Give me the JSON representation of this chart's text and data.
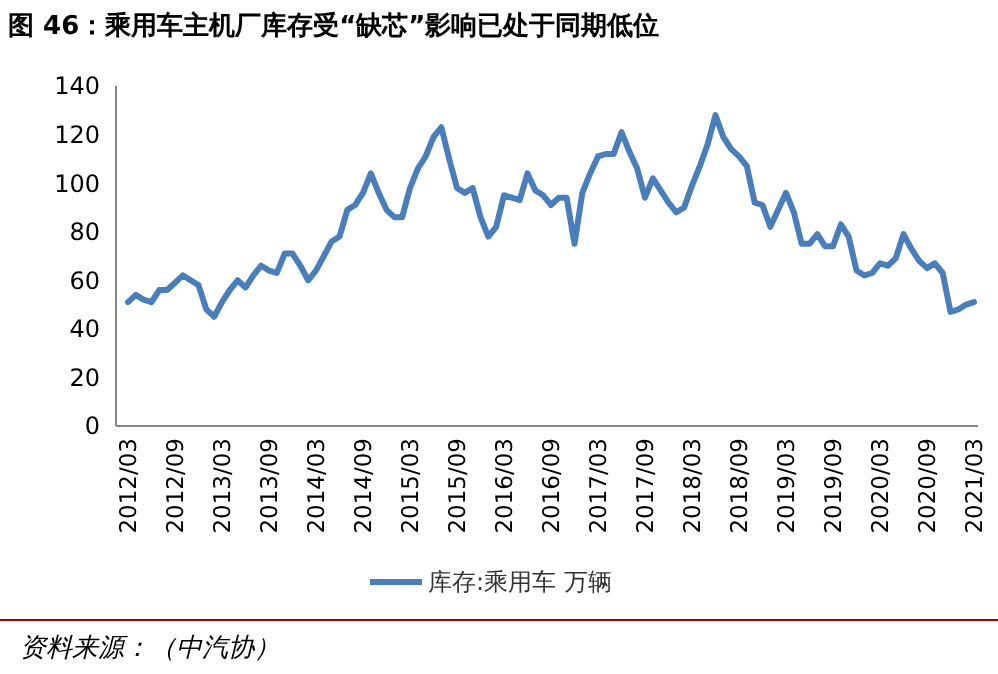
{
  "chart_data": {
    "type": "line",
    "title": "图 46：乘用车主机厂库存受“缺芯”影响已处于同期低位",
    "annotations": [
      "资料来源：（中汽协）"
    ],
    "categories": [
      "2012/03",
      null,
      null,
      null,
      null,
      null,
      "2012/09",
      null,
      null,
      null,
      null,
      null,
      "2013/03",
      null,
      null,
      null,
      null,
      null,
      "2013/09",
      null,
      null,
      null,
      null,
      null,
      "2014/03",
      null,
      null,
      null,
      null,
      null,
      "2014/09",
      null,
      null,
      null,
      null,
      null,
      "2015/03",
      null,
      null,
      null,
      null,
      null,
      "2015/09",
      null,
      null,
      null,
      null,
      null,
      "2016/03",
      null,
      null,
      null,
      null,
      null,
      "2016/09",
      null,
      null,
      null,
      null,
      null,
      "2017/03",
      null,
      null,
      null,
      null,
      null,
      "2017/09",
      null,
      null,
      null,
      null,
      null,
      "2018/03",
      null,
      null,
      null,
      null,
      null,
      "2018/09",
      null,
      null,
      null,
      null,
      null,
      "2019/03",
      null,
      null,
      null,
      null,
      null,
      "2019/09",
      null,
      null,
      null,
      null,
      null,
      "2020/03",
      null,
      null,
      null,
      null,
      null,
      "2020/09",
      null,
      null,
      null,
      null,
      null,
      "2021/03"
    ],
    "series": [
      {
        "name": "库存:乘用车 万辆",
        "color": "#4a7ebb",
        "values": [
          51,
          54,
          52,
          51,
          56,
          56,
          59,
          62,
          60,
          58,
          48,
          45,
          51,
          56,
          60,
          57,
          62,
          66,
          64,
          63,
          71,
          71,
          66,
          60,
          64,
          70,
          76,
          78,
          89,
          91,
          96,
          104,
          96,
          89,
          86,
          86,
          98,
          106,
          111,
          119,
          123,
          110,
          98,
          96,
          98,
          86,
          78,
          82,
          95,
          94,
          93,
          104,
          97,
          95,
          91,
          94,
          94,
          75,
          96,
          104,
          111,
          112,
          112,
          121,
          113,
          106,
          94,
          102,
          97,
          92,
          88,
          90,
          99,
          107,
          116,
          128,
          119,
          114,
          111,
          107,
          92,
          91,
          82,
          89,
          96,
          88,
          75,
          75,
          79,
          74,
          74,
          83,
          78,
          64,
          62,
          63,
          67,
          66,
          69,
          79,
          73,
          68,
          65,
          67,
          63,
          47,
          48,
          50,
          51
        ]
      }
    ],
    "ylim": [
      0,
      140
    ],
    "yticks": [
      0,
      20,
      40,
      60,
      80,
      100,
      120,
      140
    ],
    "grid": false,
    "legend": "bottom",
    "line_style": "solid",
    "marker": "none"
  }
}
